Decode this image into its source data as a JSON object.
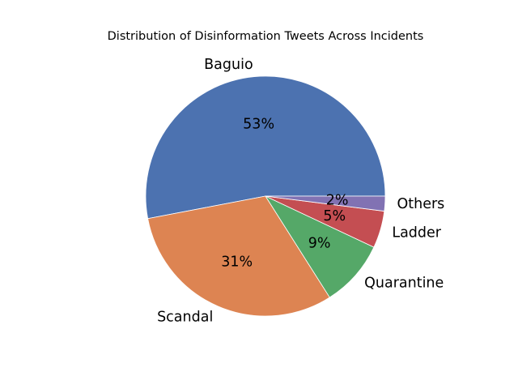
{
  "chart_data": {
    "type": "pie",
    "title": "Distribution of Disinformation Tweets Across Incidents",
    "categories": [
      "Baguio",
      "Scandal",
      "Quarantine",
      "Ladder",
      "Others"
    ],
    "values": [
      53,
      31,
      9,
      5,
      2
    ],
    "percent_labels": [
      "53%",
      "31%",
      "9%",
      "5%",
      "2%"
    ],
    "colors": [
      "#4c72b0",
      "#dd8452",
      "#55a868",
      "#c44e52",
      "#8172b3"
    ],
    "start_angle_deg": 0,
    "direction": "counterclockwise",
    "legend": "none"
  }
}
